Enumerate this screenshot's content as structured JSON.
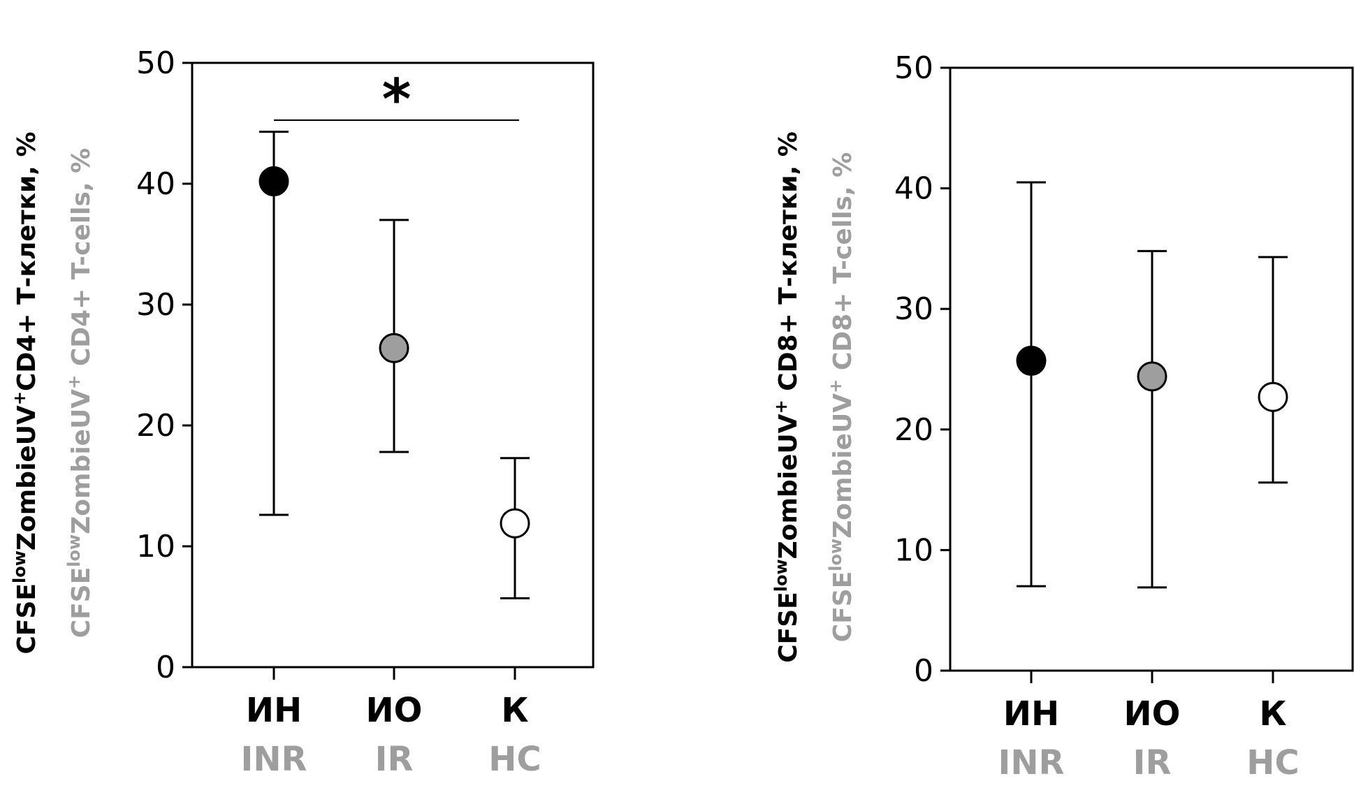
{
  "chart_data": [
    {
      "type": "scatter",
      "ylabel_ru": {
        "base": "CFSE",
        "sup1": "low",
        "mid": "ZombieUV",
        "sup2": "+",
        "tail": "CD4+ Т-клетки, %"
      },
      "ylabel_en": {
        "base": "CFSE",
        "sup1": "low",
        "mid": "ZombieUV",
        "sup2": "+",
        "tail": " CD4+ T-cells, %"
      },
      "ylim": [
        0,
        50
      ],
      "yticks": [
        "0",
        "10",
        "20",
        "30",
        "40",
        "50"
      ],
      "categories_ru": [
        "ИН",
        "ИО",
        "К"
      ],
      "categories_en": [
        "INR",
        "IR",
        "HC"
      ],
      "points": [
        {
          "group": "INR",
          "value": 40.2,
          "err_low": 12.6,
          "err_high": 44.3,
          "fill": "#000000"
        },
        {
          "group": "IR",
          "value": 26.4,
          "err_low": 17.8,
          "err_high": 37.0,
          "fill": "#9e9e9e"
        },
        {
          "group": "HC",
          "value": 11.9,
          "err_low": 5.7,
          "err_high": 17.3,
          "fill": "#ffffff"
        }
      ],
      "significance": {
        "from": "INR",
        "to": "HC",
        "label": "*"
      }
    },
    {
      "type": "scatter",
      "ylabel_ru": {
        "base": "CFSE",
        "sup1": "low",
        "mid": "ZombieUV",
        "sup2": "+",
        "tail": " CD8+ Т-клетки, %"
      },
      "ylabel_en": {
        "base": "CFSE",
        "sup1": "low",
        "mid": "ZombieUV",
        "sup2": "+",
        "tail": " CD8+ T-cells, %"
      },
      "ylim": [
        0,
        50
      ],
      "yticks": [
        "0",
        "10",
        "20",
        "30",
        "40",
        "50"
      ],
      "categories_ru": [
        "ИН",
        "ИО",
        "К"
      ],
      "categories_en": [
        "INR",
        "IR",
        "HC"
      ],
      "points": [
        {
          "group": "INR",
          "value": 25.7,
          "err_low": 7.0,
          "err_high": 40.5,
          "fill": "#000000"
        },
        {
          "group": "IR",
          "value": 24.4,
          "err_low": 6.9,
          "err_high": 34.8,
          "fill": "#9e9e9e"
        },
        {
          "group": "HC",
          "value": 22.7,
          "err_low": 15.6,
          "err_high": 34.3,
          "fill": "#ffffff"
        }
      ]
    }
  ]
}
